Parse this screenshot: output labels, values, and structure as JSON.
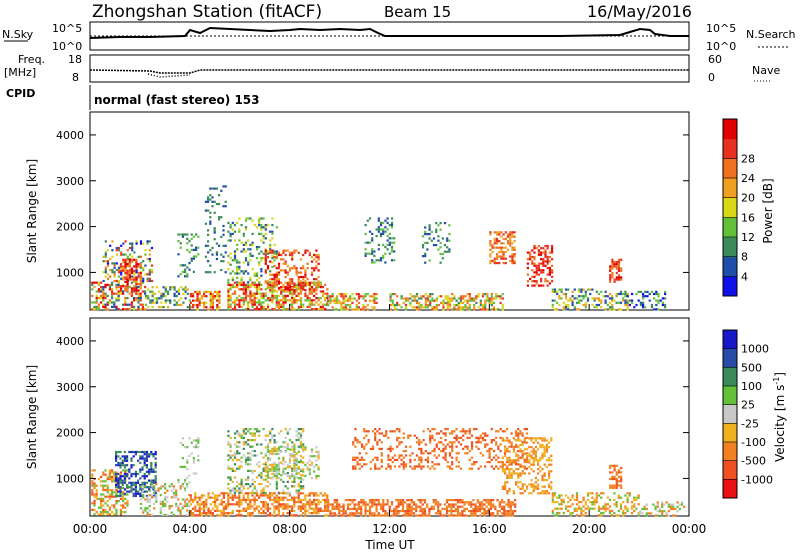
{
  "header": {
    "station": "Zhongshan Station (fitACF)",
    "beam": "Beam 15",
    "date": "16/May/2016"
  },
  "chart_data": [
    {
      "type": "line",
      "panel": "noise",
      "left_label": "N.Sky",
      "right_label": "N.Search",
      "left_ticks": [
        "10^5",
        "10^0"
      ],
      "right_ticks": [
        "10^5",
        "10^0"
      ]
    },
    {
      "type": "line",
      "panel": "frequency-nave",
      "left_label_line1": "Freq.",
      "left_label_line2": "[MHz]",
      "right_label": "Nave",
      "left_ticks": [
        "18",
        "8"
      ],
      "right_ticks": [
        "60",
        "0"
      ]
    },
    {
      "type": "table",
      "panel": "cpid",
      "label": "CPID",
      "text": "normal (fast stereo) 153"
    },
    {
      "type": "heatmap",
      "panel": "power",
      "ylabel": "Slant Range [km]",
      "ylim": [
        180,
        4500
      ],
      "yticks": [
        "1000",
        "2000",
        "3000",
        "4000"
      ],
      "colorbar_label": "Power [dB]",
      "colorbar_ticks": [
        "4",
        "8",
        "12",
        "16",
        "20",
        "24",
        "28"
      ],
      "colorbar_colors": [
        "#1010e8",
        "#1e4ea8",
        "#3a8a5a",
        "#62c03a",
        "#d8d816",
        "#f0a020",
        "#f07020",
        "#e83020",
        "#e00000"
      ]
    },
    {
      "type": "heatmap",
      "panel": "velocity",
      "ylabel": "Slant Range [km]",
      "ylim": [
        180,
        4500
      ],
      "yticks": [
        "1000",
        "2000",
        "3000",
        "4000"
      ],
      "colorbar_label": "Velocity [m s",
      "colorbar_label_exp": "-1",
      "colorbar_label_close": "]",
      "colorbar_ticks": [
        "1000",
        "500",
        "100",
        "25",
        "-25",
        "-100",
        "-500",
        "-1000"
      ],
      "colorbar_colors": [
        "#1818c8",
        "#2a4aa8",
        "#3a8a5a",
        "#62c03a",
        "#c8c8c8",
        "#f0b020",
        "#f08020",
        "#f05020",
        "#e81010"
      ],
      "xlabel": "Time UT",
      "xticks": [
        "00:00",
        "04:00",
        "08:00",
        "12:00",
        "16:00",
        "20:00",
        "00:00"
      ],
      "xlim_hours": [
        0,
        24
      ]
    }
  ]
}
